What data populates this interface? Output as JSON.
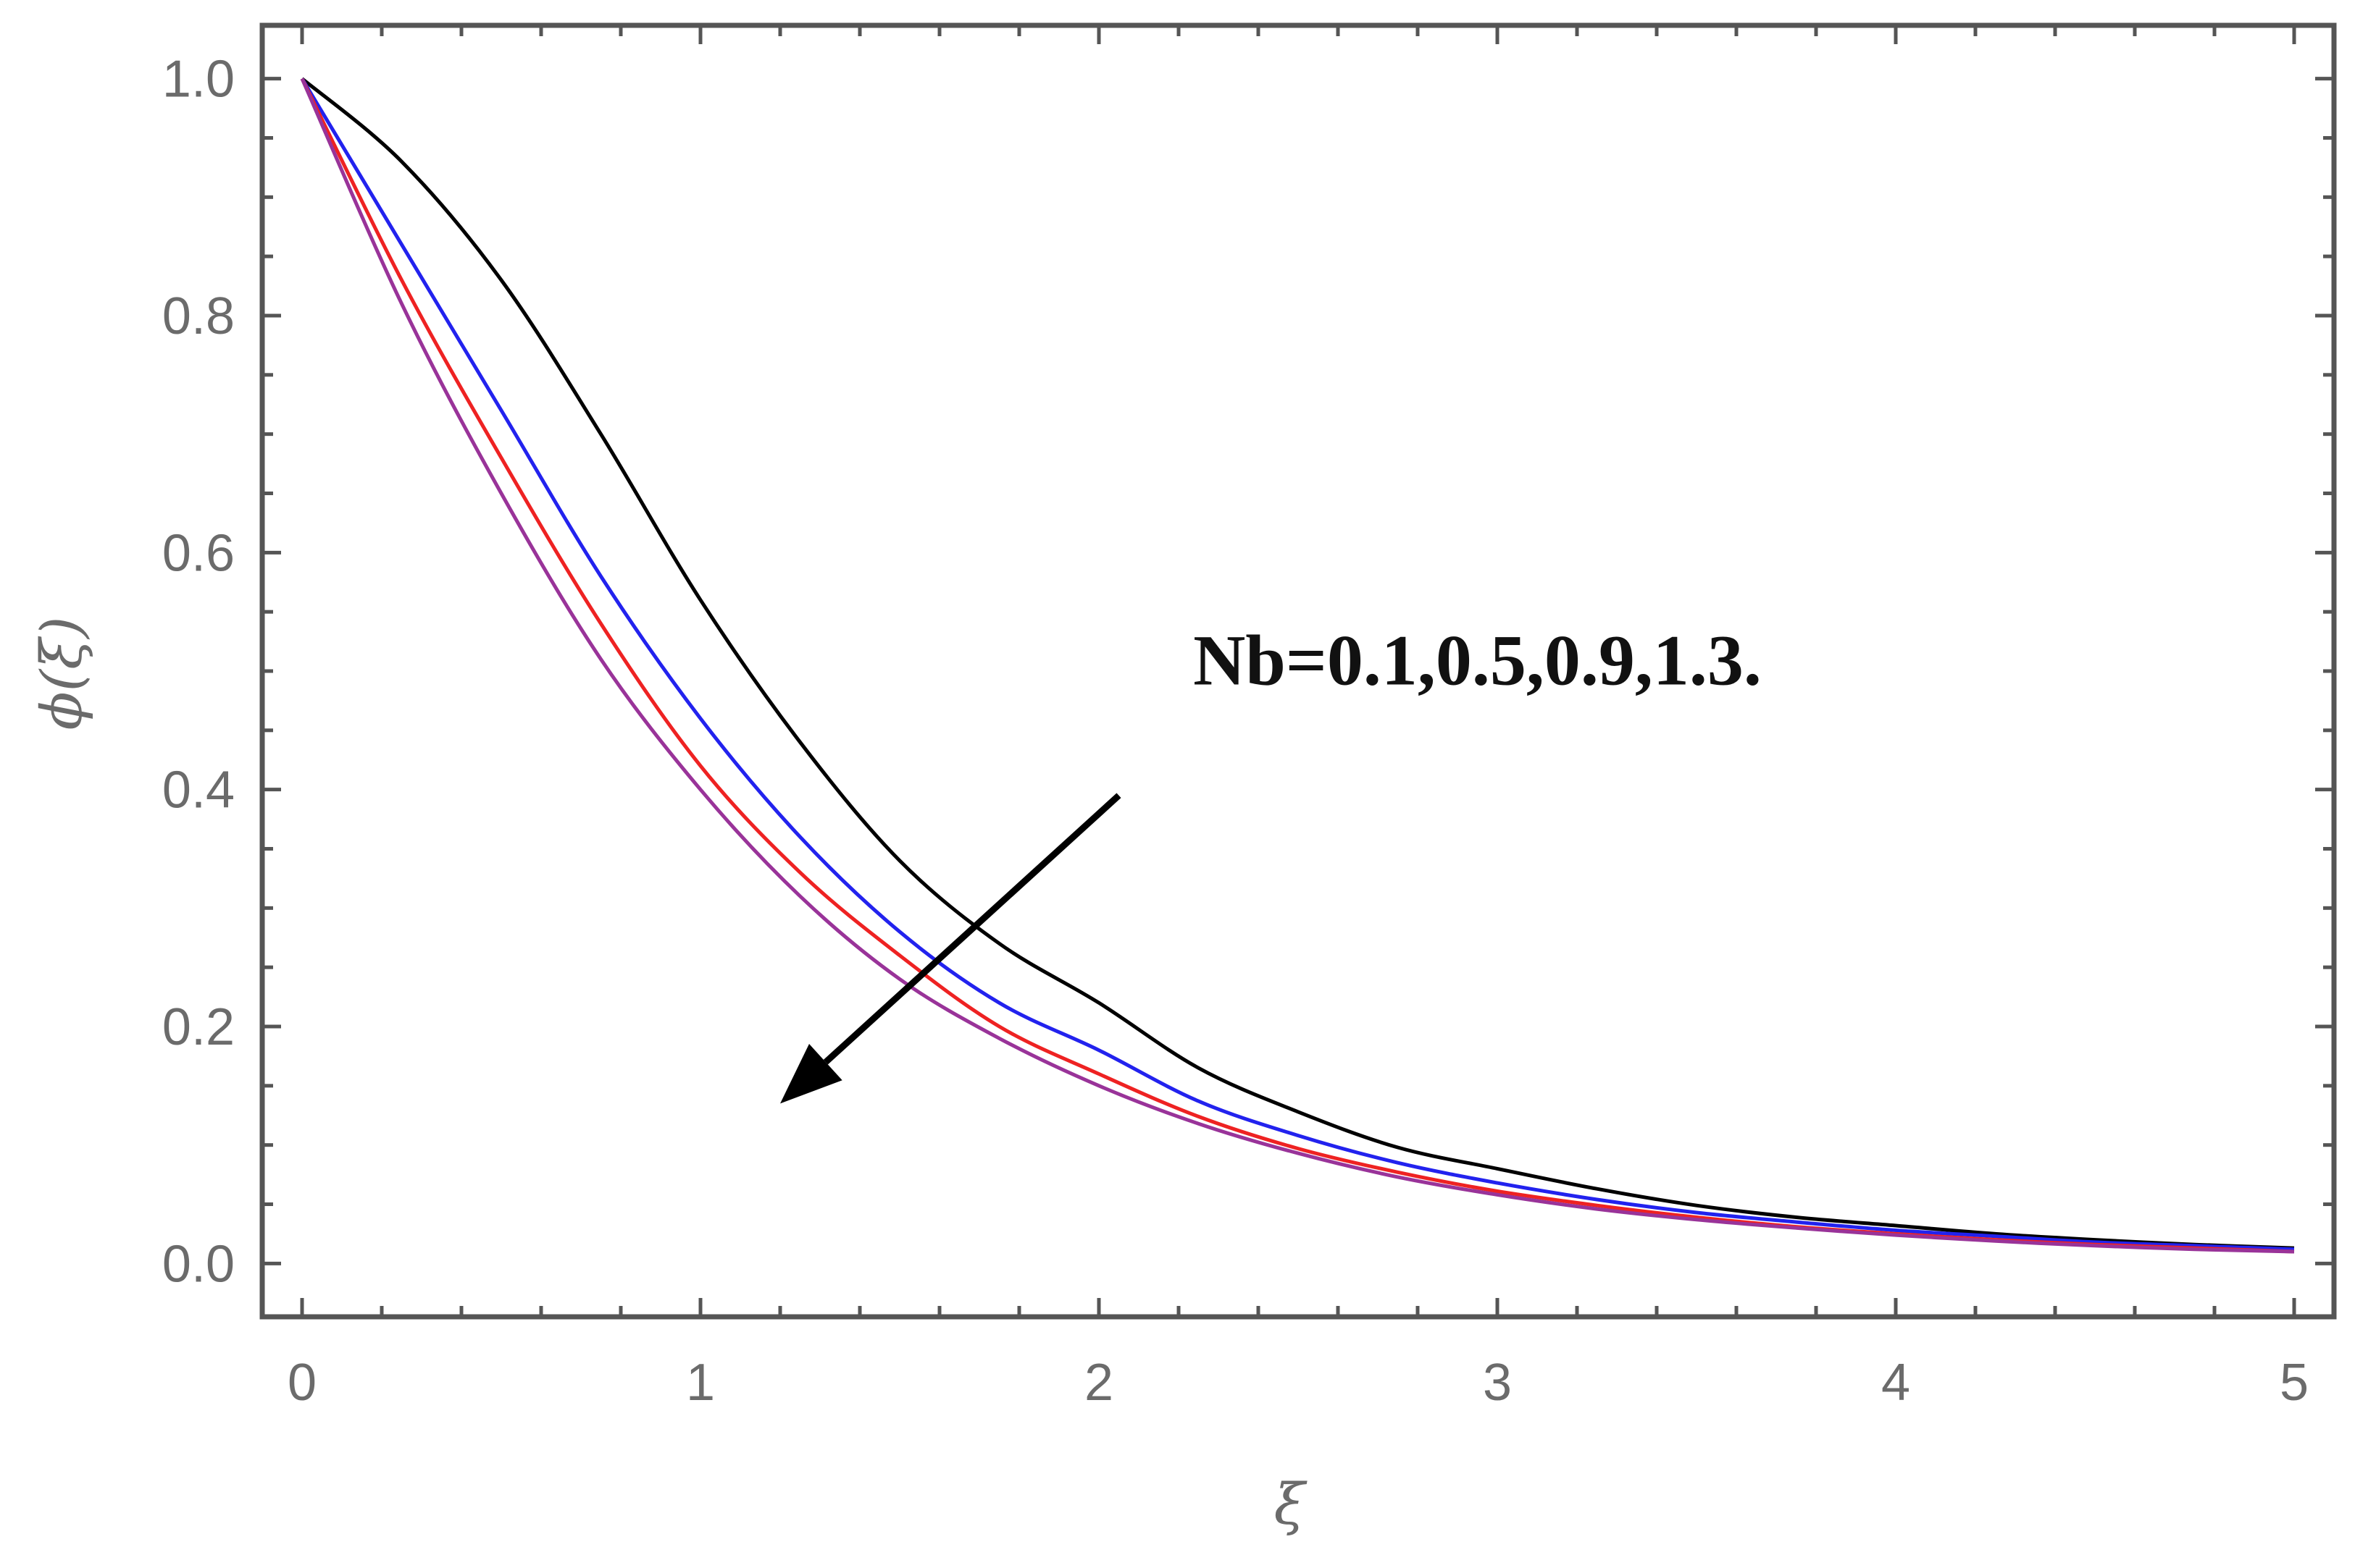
{
  "chart_data": {
    "type": "line",
    "title": "",
    "xlabel": "ξ",
    "ylabel": "ϕ(ξ)",
    "xlim": [
      -0.1,
      5.1
    ],
    "ylim": [
      -0.045,
      1.045
    ],
    "x_ticks": [
      0,
      1,
      2,
      3,
      4,
      5
    ],
    "x_tick_labels": [
      "0",
      "1",
      "2",
      "3",
      "4",
      "5"
    ],
    "y_ticks": [
      0.0,
      0.2,
      0.4,
      0.6,
      0.8,
      1.0
    ],
    "y_tick_labels": [
      "0.0",
      "0.2",
      "0.4",
      "0.6",
      "0.8",
      "1.0"
    ],
    "grid": false,
    "legend": "none",
    "x": [
      0,
      0.25,
      0.5,
      0.75,
      1,
      1.25,
      1.5,
      1.75,
      2,
      2.25,
      2.5,
      2.75,
      3,
      3.25,
      3.5,
      3.75,
      4,
      4.25,
      4.5,
      4.75,
      5
    ],
    "series": [
      {
        "color": "#000000",
        "values": [
          1.0,
          0.93,
          0.83,
          0.7,
          0.56,
          0.44,
          0.34,
          0.27,
          0.22,
          0.165,
          0.128,
          0.098,
          0.08,
          0.063,
          0.049,
          0.039,
          0.032,
          0.025,
          0.02,
          0.016,
          0.013
        ]
      },
      {
        "color": "#2222ee",
        "values": [
          1.0,
          0.86,
          0.72,
          0.58,
          0.46,
          0.36,
          0.28,
          0.22,
          0.18,
          0.137,
          0.108,
          0.085,
          0.068,
          0.054,
          0.043,
          0.035,
          0.028,
          0.023,
          0.018,
          0.015,
          0.012
        ]
      },
      {
        "color": "#ee2222",
        "values": [
          1.0,
          0.83,
          0.68,
          0.54,
          0.42,
          0.33,
          0.26,
          0.2,
          0.16,
          0.124,
          0.097,
          0.077,
          0.061,
          0.049,
          0.039,
          0.031,
          0.025,
          0.02,
          0.016,
          0.013,
          0.01
        ]
      },
      {
        "color": "#993399",
        "values": [
          1.0,
          0.81,
          0.65,
          0.51,
          0.4,
          0.31,
          0.24,
          0.19,
          0.15,
          0.118,
          0.093,
          0.073,
          0.058,
          0.046,
          0.037,
          0.03,
          0.024,
          0.019,
          0.015,
          0.012,
          0.01
        ]
      }
    ],
    "annotations": [
      {
        "text": "Nb=0.1,0.5,0.9,1.3.",
        "x": 2.95,
        "y": 0.51
      }
    ],
    "arrow": {
      "from": [
        2.05,
        0.395
      ],
      "to": [
        1.2,
        0.135
      ],
      "color": "#000000"
    }
  }
}
